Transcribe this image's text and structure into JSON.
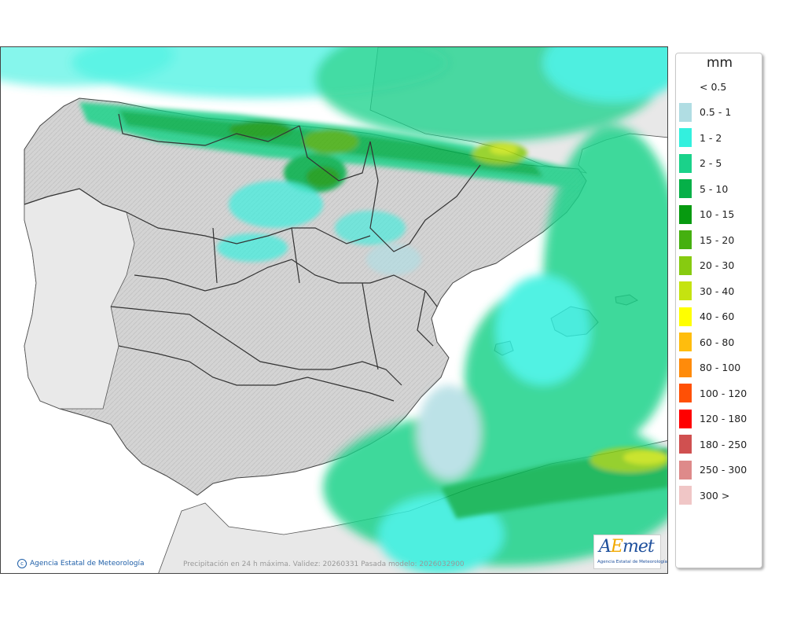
{
  "legend": {
    "title": "mm",
    "items": [
      {
        "label": "< 0.5",
        "color": "#ffffff"
      },
      {
        "label": "0.5 - 1",
        "color": "#b0dde3"
      },
      {
        "label": "1 - 2",
        "color": "#33f0de"
      },
      {
        "label": "2 - 5",
        "color": "#1ad28a"
      },
      {
        "label": "5 - 10",
        "color": "#05b048"
      },
      {
        "label": "10 - 15",
        "color": "#079a10"
      },
      {
        "label": "15 - 20",
        "color": "#45b010"
      },
      {
        "label": "20 - 30",
        "color": "#87cb10"
      },
      {
        "label": "30 - 40",
        "color": "#c5e310"
      },
      {
        "label": "40 - 60",
        "color": "#ffff00"
      },
      {
        "label": "60 - 80",
        "color": "#ffbd0d"
      },
      {
        "label": "80 - 100",
        "color": "#ff8b0a"
      },
      {
        "label": "100 - 120",
        "color": "#ff5005"
      },
      {
        "label": "120 - 180",
        "color": "#ff0000"
      },
      {
        "label": "180 - 250",
        "color": "#d05050"
      },
      {
        "label": "250 - 300",
        "color": "#de8a8a"
      },
      {
        "label": "300 >",
        "color": "#f0c6c6"
      }
    ]
  },
  "footer": {
    "credit": "Agencia Estatal de Meteorología",
    "caption": "Precipitación en 24 h máxima. Validez: 20260331 Pasada modelo: 2026032900"
  },
  "logo": {
    "wordmark_a": "A",
    "wordmark_e": "E",
    "wordmark_rest": "met",
    "subtitle": "Agencia Estatal de Meteorología"
  },
  "map": {
    "land_color": "#d6d6d6",
    "foreign_land_color": "#e8e8e8",
    "sea_color": "#ffffff",
    "border_color": "#333333"
  }
}
